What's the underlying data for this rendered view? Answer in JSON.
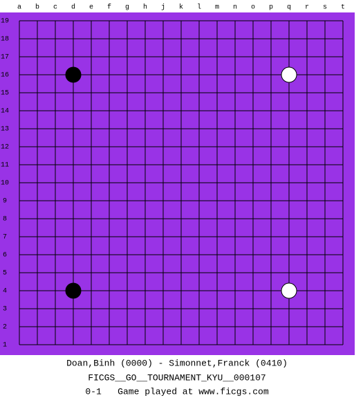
{
  "board": {
    "columns": [
      "a",
      "b",
      "c",
      "d",
      "e",
      "f",
      "g",
      "h",
      "j",
      "k",
      "l",
      "m",
      "n",
      "o",
      "p",
      "q",
      "r",
      "s",
      "t"
    ],
    "rows": [
      19,
      18,
      17,
      16,
      15,
      14,
      13,
      12,
      11,
      10,
      9,
      8,
      7,
      6,
      5,
      4,
      3,
      2,
      1
    ],
    "background": "#9933e6",
    "stones": [
      {
        "color": "black",
        "col": "d",
        "row": 16
      },
      {
        "color": "white",
        "col": "q",
        "row": 16
      },
      {
        "color": "black",
        "col": "d",
        "row": 4
      },
      {
        "color": "white",
        "col": "q",
        "row": 4
      }
    ]
  },
  "footer": {
    "players": "Doan,Binh (0000) - Simonnet,Franck (0410)",
    "event": "FICGS__GO__TOURNAMENT_KYU__000107",
    "result": "0-1   Game played at www.ficgs.com"
  }
}
